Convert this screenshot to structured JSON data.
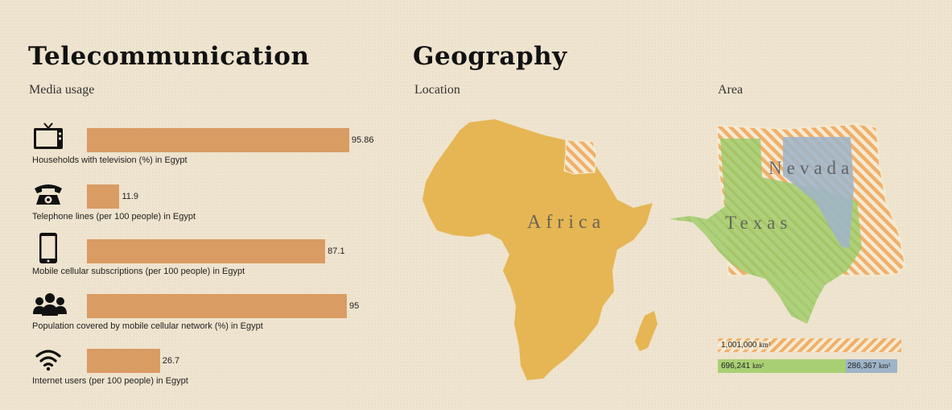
{
  "telecom": {
    "title": "Telecommunication",
    "subtitle": "Media usage"
  },
  "geography": {
    "title": "Geography",
    "location_label": "Location",
    "area_label": "Area",
    "map_labels": {
      "africa": "Africa",
      "nevada": "Nevada",
      "texas": "Texas"
    },
    "area_bars": {
      "egypt_value": "1,001,000",
      "texas_value": "696,241",
      "nevada_value": "286,367",
      "unit": "km²"
    }
  },
  "colors": {
    "bar": "#d99c63",
    "africa": "#e6b654",
    "egypt_stripe": "#f0b06a",
    "texas": "#a9cf74",
    "nevada": "#9fb4c8"
  },
  "chart_data": {
    "type": "bar",
    "orientation": "horizontal",
    "categories": [
      "Households with television (%) in Egypt",
      "Telephone lines (per 100 people) in Egypt",
      "Mobile cellular subscriptions (per 100 people) in Egypt",
      "Population covered by mobile cellular network (%) in Egypt",
      "Internet users (per 100 people) in Egypt"
    ],
    "values": [
      95.86,
      11.9,
      87.1,
      95,
      26.7
    ],
    "value_labels": [
      "95.86",
      "11.9",
      "87.1",
      "95",
      "26.7"
    ],
    "icons": [
      "television-icon",
      "telephone-icon",
      "mobile-phone-icon",
      "people-icon",
      "wifi-icon"
    ],
    "xlim": [
      0,
      100
    ],
    "grid": false
  }
}
